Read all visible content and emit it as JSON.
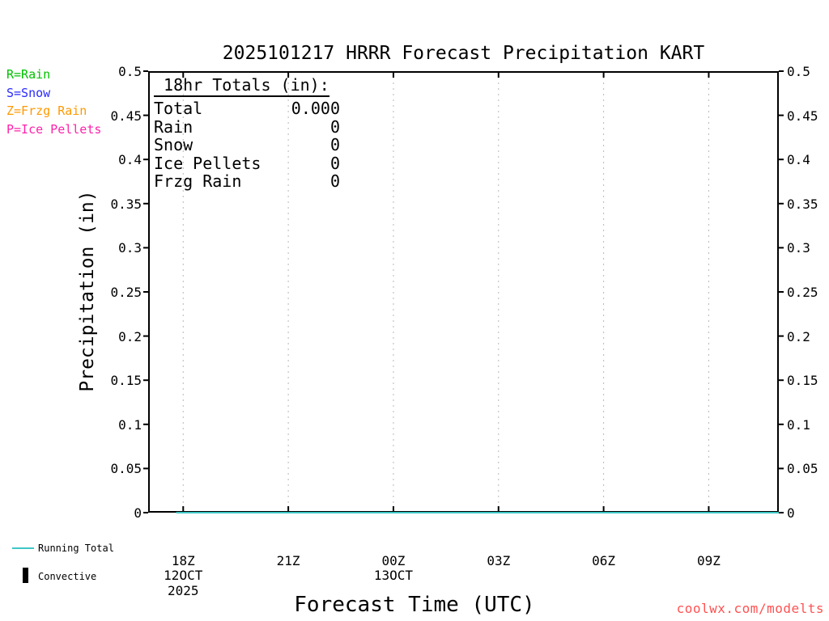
{
  "title": "2025101217 HRRR Forecast Precipitation KART",
  "legend": {
    "items": [
      {
        "label": "R=Rain",
        "color": "#00c000"
      },
      {
        "label": "S=Snow",
        "color": "#2a2aff"
      },
      {
        "label": "Z=Frzg Rain",
        "color": "#ff9900"
      },
      {
        "label": "P=Ice Pellets",
        "color": "#ff22aa"
      }
    ]
  },
  "totals_box": {
    "heading": " 18hr Totals (in):",
    "rows": [
      {
        "label": "Total",
        "value": "0.000"
      },
      {
        "label": "Rain",
        "value": "0"
      },
      {
        "label": "Snow",
        "value": "0"
      },
      {
        "label": "Ice Pellets",
        "value": "0"
      },
      {
        "label": "Frzg Rain",
        "value": "0"
      }
    ]
  },
  "bottom_legend": {
    "running_total_label": "Running Total",
    "running_total_color": "#3fc6c6",
    "convective_label": "Convective",
    "convective_color": "#000000"
  },
  "watermark": {
    "text": "coolwx.com/modelts",
    "color": "#ff5252"
  },
  "chart_data": {
    "type": "line",
    "title": "2025101217 HRRR Forecast Precipitation KART",
    "xlabel": "Forecast Time (UTC)",
    "ylabel": "Precipitation (in)",
    "ylim": [
      0,
      0.5
    ],
    "xlim_hours": [
      17,
      35
    ],
    "grid": "vertical-dashed",
    "legend_position": "bottom-left",
    "y_tick_labels": [
      "0",
      "0.05",
      "0.1",
      "0.15",
      "0.2",
      "0.25",
      "0.3",
      "0.35",
      "0.4",
      "0.45",
      "0.5"
    ],
    "x_ticks": [
      {
        "hour": 18,
        "label": "18Z",
        "sub": [
          "12OCT",
          "2025"
        ]
      },
      {
        "hour": 21,
        "label": "21Z",
        "sub": []
      },
      {
        "hour": 24,
        "label": "00Z",
        "sub": [
          "13OCT"
        ]
      },
      {
        "hour": 27,
        "label": "03Z",
        "sub": []
      },
      {
        "hour": 30,
        "label": "06Z",
        "sub": []
      },
      {
        "hour": 33,
        "label": "09Z",
        "sub": []
      }
    ],
    "series": [
      {
        "name": "Running Total",
        "color": "#3fc6c6",
        "x_hours": [
          17.8,
          35
        ],
        "values": [
          0,
          0
        ]
      }
    ]
  }
}
